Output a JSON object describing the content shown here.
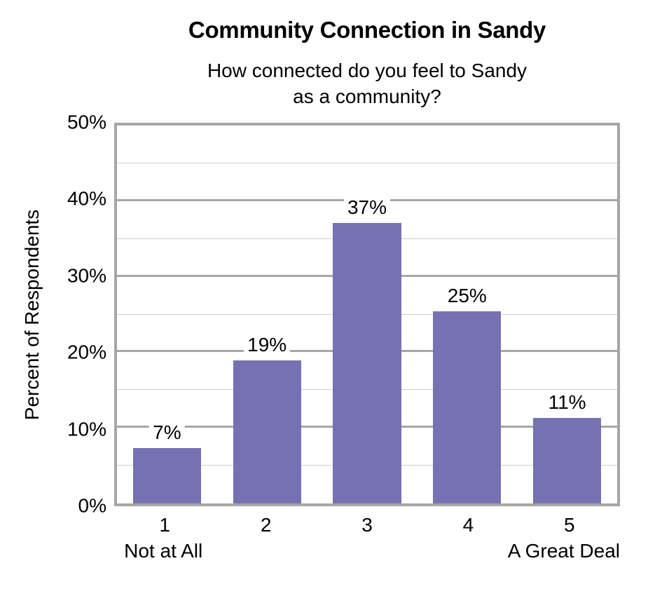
{
  "header": {
    "title": "Community Connection in Sandy",
    "subtitle_lines": [
      "How connected do you feel to Sandy",
      "as a community?"
    ]
  },
  "chart_data": {
    "type": "bar",
    "title": "Community Connection in Sandy",
    "subtitle": "How connected do you feel to Sandy as a community?",
    "categories": [
      "1",
      "2",
      "3",
      "4",
      "5"
    ],
    "category_sublabels": [
      "Not at All",
      "",
      "",
      "",
      "A Great Deal"
    ],
    "values": [
      7.3,
      18.9,
      37.1,
      25.4,
      11.3
    ],
    "value_labels": [
      "7%",
      "19%",
      "37%",
      "25%",
      "11%"
    ],
    "xlabel": "",
    "ylabel": "Percent of Respondents",
    "ylim": [
      0,
      50
    ],
    "y_tick_labels": [
      "0%",
      "10%",
      "20%",
      "30%",
      "40%",
      "50%"
    ],
    "y_major_step": 10,
    "y_minor_step": 5,
    "grid": "horizontal, major and minor lines",
    "legend": "none",
    "bar_color": "#7571B3",
    "major_grid_color": "#A6A6A6",
    "minor_grid_color": "#CDCDCD",
    "plot_border_color": "#A6A6A6",
    "label_background": "#ffffff",
    "text_color": "#000000"
  }
}
